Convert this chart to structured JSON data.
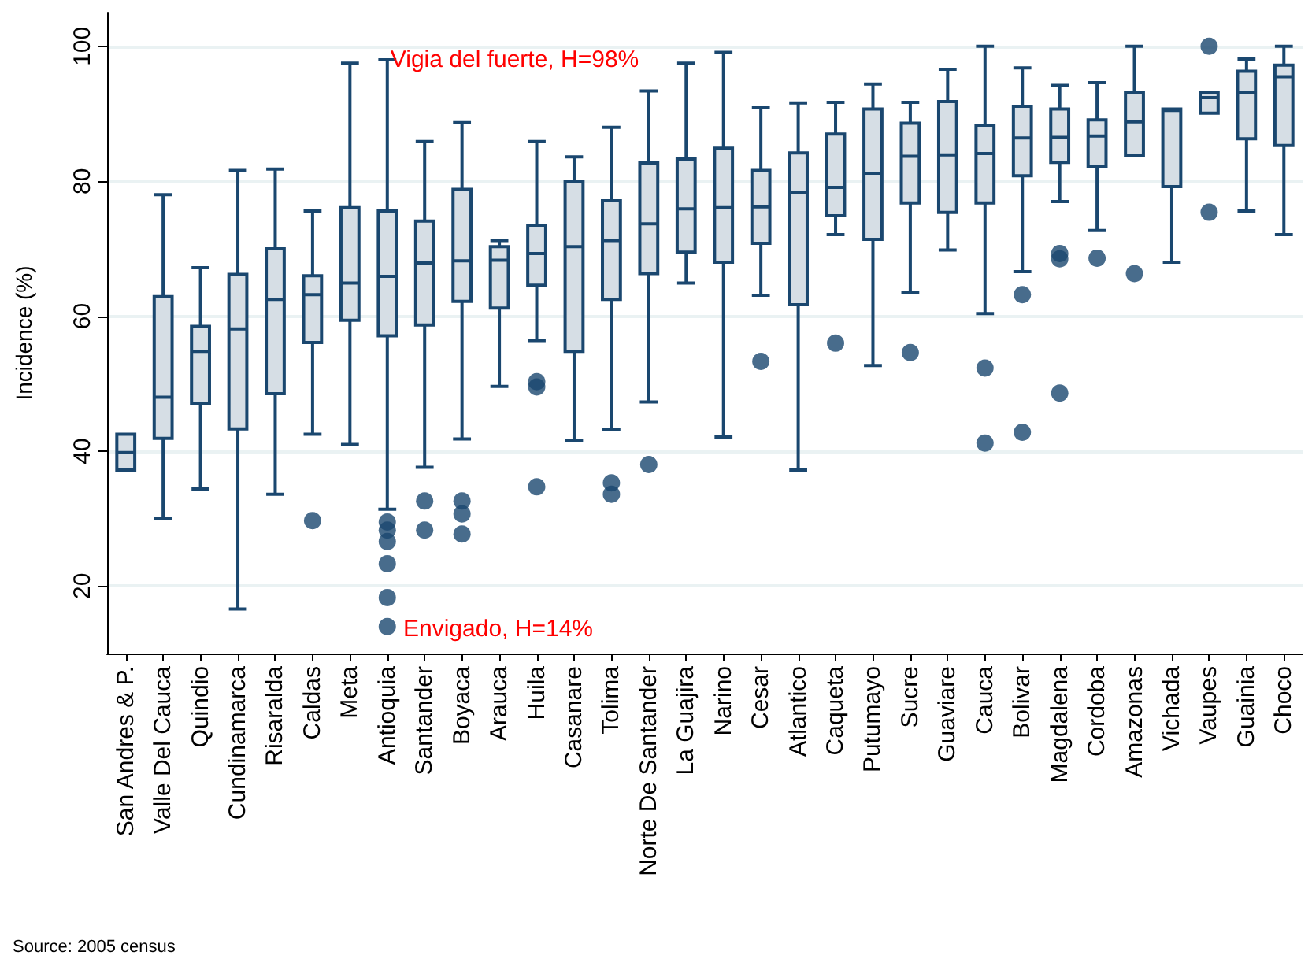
{
  "chart_data": {
    "type": "box",
    "ylabel": "Incidence (%)",
    "color": "#1a476f",
    "grid": "y",
    "ylim": [
      10,
      105
    ],
    "yticks": [
      20,
      40,
      60,
      80,
      100
    ],
    "categories": [
      "San Andres & P.",
      "Valle Del Cauca",
      "Quindio",
      "Cundinamarca",
      "Risaralda",
      "Caldas",
      "Meta",
      "Antioquia",
      "Santander",
      "Boyaca",
      "Arauca",
      "Huila",
      "Casanare",
      "Tolima",
      "Norte De Santander",
      "La Guajira",
      "Narino",
      "Cesar",
      "Atlantico",
      "Caqueta",
      "Putumayo",
      "Sucre",
      "Guaviare",
      "Cauca",
      "Bolivar",
      "Magdalena",
      "Cordoba",
      "Amazonas",
      "Vichada",
      "Vaupes",
      "Guainia",
      "Choco"
    ],
    "boxes": [
      {
        "low": 37.2,
        "q1": 37.2,
        "median": 39.8,
        "q3": 42.5,
        "high": 42.5
      },
      {
        "low": 30,
        "q1": 41.9,
        "median": 48,
        "q3": 62.9,
        "high": 78
      },
      {
        "low": 34.4,
        "q1": 47.1,
        "median": 54.8,
        "q3": 58.5,
        "high": 67.2
      },
      {
        "low": 16.6,
        "q1": 43.3,
        "median": 58.1,
        "q3": 66.2,
        "high": 81.6
      },
      {
        "low": 33.6,
        "q1": 48.5,
        "median": 62.5,
        "q3": 70,
        "high": 81.8
      },
      {
        "low": 42.5,
        "q1": 56.1,
        "median": 63.2,
        "q3": 66,
        "high": 75.6,
        "outliers": [
          29.7
        ]
      },
      {
        "low": 41,
        "q1": 59.4,
        "median": 64.9,
        "q3": 76.1,
        "high": 97.5
      },
      {
        "low": 31.4,
        "q1": 57.1,
        "median": 65.9,
        "q3": 75.6,
        "high": 98,
        "outliers": [
          29.5,
          28.3,
          26.6,
          23.3,
          18.3,
          14
        ]
      },
      {
        "low": 37.6,
        "q1": 58.7,
        "median": 67.9,
        "q3": 74.1,
        "high": 85.9,
        "outliers": [
          32.6,
          28.3
        ]
      },
      {
        "low": 41.8,
        "q1": 62.2,
        "median": 68.2,
        "q3": 78.8,
        "high": 88.7,
        "outliers": [
          32.6,
          30.7,
          27.7
        ]
      },
      {
        "low": 49.6,
        "q1": 61.2,
        "median": 68.3,
        "q3": 70.3,
        "high": 71.2
      },
      {
        "low": 56.4,
        "q1": 64.6,
        "median": 69.3,
        "q3": 73.5,
        "high": 85.9,
        "outliers": [
          50.3,
          49.5,
          34.7
        ]
      },
      {
        "low": 41.6,
        "q1": 54.8,
        "median": 70.3,
        "q3": 79.9,
        "high": 83.6
      },
      {
        "low": 43.2,
        "q1": 62.5,
        "median": 71.2,
        "q3": 77.1,
        "high": 88,
        "outliers": [
          35.3,
          33.6
        ]
      },
      {
        "low": 47.3,
        "q1": 66.3,
        "median": 73.7,
        "q3": 82.7,
        "high": 93.4,
        "outliers": [
          38
        ]
      },
      {
        "low": 64.9,
        "q1": 69.5,
        "median": 75.9,
        "q3": 83.3,
        "high": 97.5
      },
      {
        "low": 42.1,
        "q1": 68,
        "median": 76.1,
        "q3": 84.9,
        "high": 99.1
      },
      {
        "low": 63.1,
        "q1": 70.8,
        "median": 76.2,
        "q3": 81.6,
        "high": 90.9,
        "outliers": [
          53.3
        ]
      },
      {
        "low": 37.2,
        "q1": 61.7,
        "median": 78.3,
        "q3": 84.2,
        "high": 91.6
      },
      {
        "low": 72.1,
        "q1": 74.9,
        "median": 79.1,
        "q3": 87,
        "high": 91.7,
        "outliers": [
          56
        ]
      },
      {
        "low": 52.7,
        "q1": 71.4,
        "median": 81.2,
        "q3": 90.7,
        "high": 94.4
      },
      {
        "low": 63.5,
        "q1": 76.8,
        "median": 83.7,
        "q3": 88.6,
        "high": 91.7,
        "outliers": [
          54.6
        ]
      },
      {
        "low": 69.8,
        "q1": 75.4,
        "median": 83.9,
        "q3": 91.8,
        "high": 96.6
      },
      {
        "low": 60.4,
        "q1": 76.8,
        "median": 84.1,
        "q3": 88.3,
        "high": 100,
        "outliers": [
          52.3,
          41.2
        ]
      },
      {
        "low": 66.6,
        "q1": 80.8,
        "median": 86.4,
        "q3": 91.1,
        "high": 96.8,
        "outliers": [
          63.2,
          42.8
        ]
      },
      {
        "low": 77,
        "q1": 82.8,
        "median": 86.5,
        "q3": 90.7,
        "high": 94.2,
        "outliers": [
          69.3,
          68.5,
          48.6
        ]
      },
      {
        "low": 72.7,
        "q1": 82.2,
        "median": 86.7,
        "q3": 89.1,
        "high": 94.6,
        "outliers": [
          68.6
        ]
      },
      {
        "low": 83.8,
        "q1": 83.8,
        "median": 88.8,
        "q3": 93.2,
        "high": 100,
        "outliers": [
          66.3
        ]
      },
      {
        "low": 68,
        "q1": 79.2,
        "median": 90.5,
        "q3": 90.7,
        "high": 90.7
      },
      {
        "low": 90.1,
        "q1": 90.1,
        "median": 92.4,
        "q3": 93.1,
        "high": 93.1,
        "outliers": [
          100,
          75.4
        ]
      },
      {
        "low": 75.6,
        "q1": 86.3,
        "median": 93.2,
        "q3": 96.3,
        "high": 98.1
      },
      {
        "low": 72.1,
        "q1": 85.3,
        "median": 95.5,
        "q3": 97.2,
        "high": 100
      }
    ],
    "annotations": [
      {
        "text": "Vigia del fuerte, H=98%",
        "x": "Antioquia",
        "y": 98
      },
      "Envigado, H=14%",
      "Source: 2005 census"
    ]
  }
}
